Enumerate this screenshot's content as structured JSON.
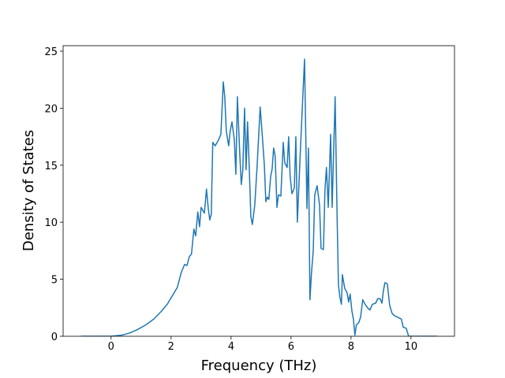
{
  "chart_data": {
    "type": "line",
    "xlabel": "Frequency (THz)",
    "ylabel": "Density of States",
    "xlim": [
      -1.6,
      11.45
    ],
    "ylim": [
      0,
      25.48
    ],
    "xticks": [
      0,
      2,
      4,
      6,
      8,
      10
    ],
    "yticks": [
      0,
      5,
      10,
      15,
      20,
      25
    ],
    "series": [
      {
        "color": "#1f77b4",
        "x": [
          -1.0,
          0,
          0.37,
          0.63,
          0.89,
          1.16,
          1.42,
          1.68,
          1.87,
          2.03,
          2.21,
          2.34,
          2.45,
          2.53,
          2.61,
          2.68,
          2.76,
          2.82,
          2.89,
          2.95,
          3.0,
          3.11,
          3.18,
          3.24,
          3.29,
          3.34,
          3.39,
          3.47,
          3.58,
          3.66,
          3.74,
          3.79,
          3.84,
          3.92,
          3.97,
          4.03,
          4.11,
          4.16,
          4.21,
          4.29,
          4.34,
          4.39,
          4.45,
          4.5,
          4.55,
          4.61,
          4.66,
          4.71,
          4.79,
          4.87,
          4.97,
          5.03,
          5.11,
          5.16,
          5.21,
          5.26,
          5.32,
          5.37,
          5.42,
          5.47,
          5.53,
          5.58,
          5.66,
          5.74,
          5.79,
          5.87,
          5.92,
          5.97,
          6.03,
          6.11,
          6.16,
          6.21,
          6.29,
          6.34,
          6.45,
          6.53,
          6.58,
          6.63,
          6.68,
          6.74,
          6.79,
          6.87,
          6.95,
          7.0,
          7.08,
          7.13,
          7.18,
          7.24,
          7.32,
          7.37,
          7.47,
          7.53,
          7.58,
          7.63,
          7.68,
          7.71,
          7.79,
          7.87,
          7.92,
          7.97,
          8.03,
          8.08,
          8.13,
          8.18,
          8.26,
          8.32,
          8.39,
          8.47,
          8.55,
          8.63,
          8.71,
          8.82,
          8.89,
          8.97,
          9.03,
          9.08,
          9.13,
          9.21,
          9.29,
          9.37,
          9.45,
          9.61,
          9.68,
          9.74,
          9.84,
          9.92,
          10.87
        ],
        "values": [
          0,
          0,
          0.1,
          0.3,
          0.6,
          1.0,
          1.5,
          2.2,
          2.8,
          3.5,
          4.3,
          5.6,
          6.3,
          6.2,
          7.0,
          7.2,
          9.4,
          8.8,
          10.9,
          9.6,
          11.3,
          10.8,
          12.9,
          11.2,
          10.2,
          10.7,
          17.0,
          16.7,
          17.2,
          17.7,
          22.3,
          21.0,
          18.0,
          16.7,
          18.0,
          18.8,
          17.2,
          14.2,
          21.0,
          16.0,
          13.3,
          14.5,
          20.0,
          14.6,
          18.8,
          14.5,
          10.5,
          9.8,
          11.5,
          15.0,
          20.1,
          18.0,
          15.0,
          11.8,
          12.2,
          12.0,
          14.0,
          14.7,
          16.5,
          15.8,
          11.3,
          12.4,
          12.3,
          17.0,
          15.2,
          14.8,
          17.5,
          14.0,
          12.5,
          13.0,
          17.5,
          10.0,
          15.0,
          18.0,
          24.3,
          11.2,
          16.5,
          3.2,
          5.5,
          7.5,
          12.4,
          13.2,
          11.5,
          7.7,
          7.6,
          12.8,
          14.8,
          11.3,
          17.7,
          11.3,
          21.0,
          11.3,
          4.5,
          3.4,
          2.8,
          5.4,
          4.2,
          3.8,
          3.0,
          3.7,
          2.2,
          1.5,
          0.1,
          1.0,
          1.2,
          1.7,
          3.2,
          2.8,
          2.5,
          2.3,
          2.8,
          2.9,
          3.3,
          3.3,
          2.9,
          4.0,
          4.7,
          4.6,
          2.7,
          2.0,
          1.8,
          1.6,
          1.5,
          0.8,
          0.7,
          0,
          0
        ]
      }
    ]
  }
}
